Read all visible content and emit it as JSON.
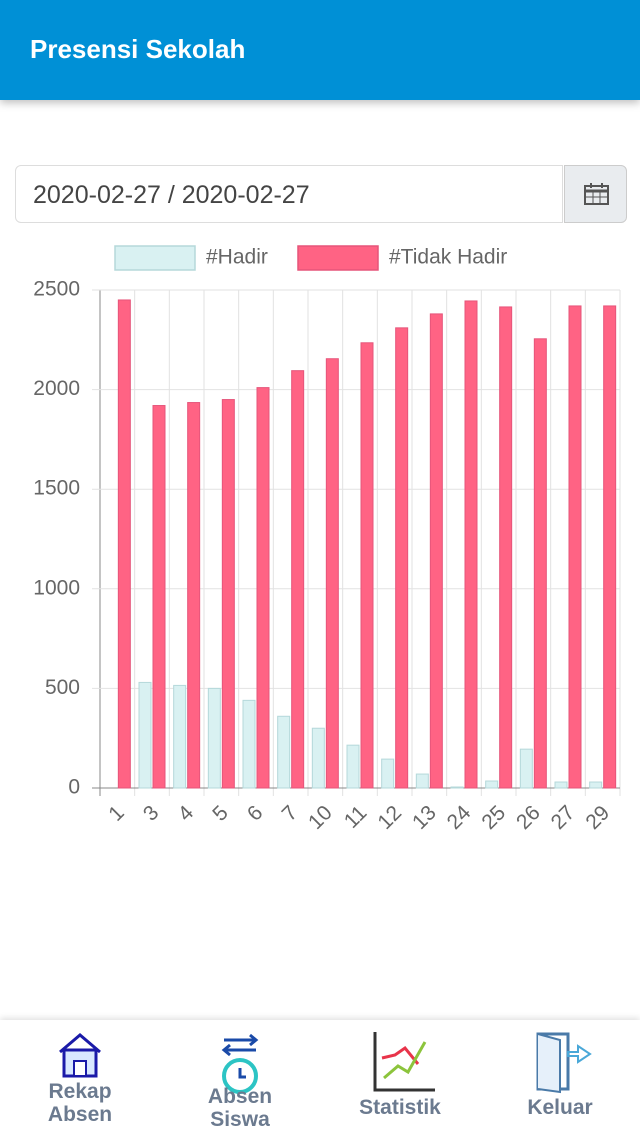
{
  "header": {
    "title": "Presensi Sekolah"
  },
  "date_range": "2020-02-27 / 2020-02-27",
  "chart_data": {
    "type": "bar",
    "categories": [
      "1",
      "3",
      "4",
      "5",
      "6",
      "7",
      "10",
      "11",
      "12",
      "13",
      "24",
      "25",
      "26",
      "27",
      "29"
    ],
    "series": [
      {
        "name": "#Hadir",
        "color": "#d9f1f2",
        "values": [
          0,
          530,
          515,
          500,
          440,
          360,
          300,
          215,
          145,
          70,
          5,
          35,
          195,
          30,
          30
        ]
      },
      {
        "name": "#Tidak Hadir",
        "color": "#ff6384",
        "values": [
          2450,
          1920,
          1935,
          1950,
          2010,
          2095,
          2155,
          2235,
          2310,
          2380,
          2445,
          2415,
          2255,
          2420,
          2420
        ]
      }
    ],
    "ylim": [
      0,
      2500
    ],
    "yticks": [
      0,
      500,
      1000,
      1500,
      2000,
      2500
    ],
    "grid": true,
    "legend": "top"
  },
  "nav": [
    {
      "label": "Rekap Absen"
    },
    {
      "label": "Absen Siswa"
    },
    {
      "label": "Statistik"
    },
    {
      "label": "Keluar"
    }
  ]
}
